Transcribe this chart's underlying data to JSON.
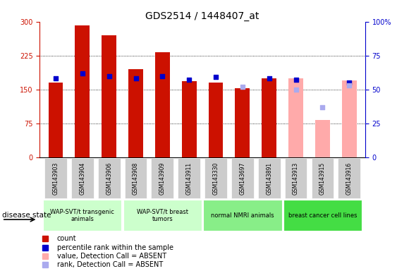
{
  "title": "GDS2514 / 1448407_at",
  "samples": [
    "GSM143903",
    "GSM143904",
    "GSM143906",
    "GSM143908",
    "GSM143909",
    "GSM143911",
    "GSM143330",
    "GSM143697",
    "GSM143891",
    "GSM143913",
    "GSM143915",
    "GSM143916"
  ],
  "count_values": [
    165,
    292,
    270,
    195,
    232,
    168,
    165,
    152,
    175,
    null,
    null,
    null
  ],
  "absent_value_values": [
    null,
    null,
    null,
    null,
    null,
    null,
    null,
    null,
    null,
    175,
    82,
    170
  ],
  "percentile_rank": [
    58,
    62,
    60,
    58,
    60,
    57,
    59,
    null,
    58,
    57,
    null,
    55
  ],
  "absent_rank": [
    null,
    null,
    null,
    null,
    null,
    null,
    null,
    52,
    null,
    50,
    37,
    53
  ],
  "groups": [
    {
      "label": "WAP-SVT/t transgenic\nanimals",
      "start": 0,
      "end": 3,
      "color": "#ccffcc"
    },
    {
      "label": "WAP-SVT/t breast\ntumors",
      "start": 3,
      "end": 6,
      "color": "#ccffcc"
    },
    {
      "label": "normal NMRI animals",
      "start": 6,
      "end": 9,
      "color": "#88ee88"
    },
    {
      "label": "breast cancer cell lines",
      "start": 9,
      "end": 12,
      "color": "#44dd44"
    }
  ],
  "ylim_left": [
    0,
    300
  ],
  "ylim_right": [
    0,
    100
  ],
  "yticks_left": [
    0,
    75,
    150,
    225,
    300
  ],
  "yticks_right": [
    0,
    25,
    50,
    75,
    100
  ],
  "bar_width": 0.55,
  "count_color": "#cc1100",
  "absent_value_color": "#ffaaaa",
  "percentile_color": "#0000cc",
  "absent_rank_color": "#aaaaee",
  "dot_size": 18,
  "background_color": "#ffffff",
  "tick_bg": "#cccccc",
  "figsize": [
    5.63,
    3.84
  ],
  "dpi": 100
}
